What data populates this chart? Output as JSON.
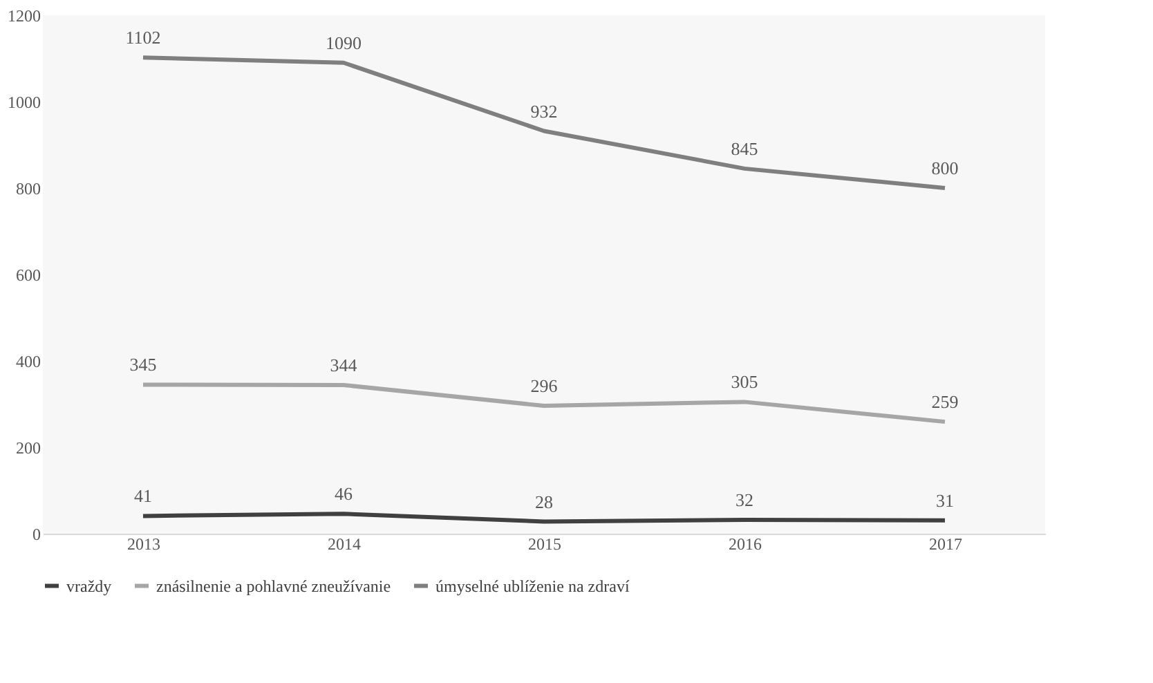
{
  "chart_data": {
    "type": "line",
    "categories": [
      "2013",
      "2014",
      "2015",
      "2016",
      "2017"
    ],
    "series": [
      {
        "name": "vraždy",
        "color": "#404040",
        "values": [
          41,
          46,
          28,
          32,
          31
        ]
      },
      {
        "name": "znásilnenie a pohlavné zneužívanie",
        "color": "#a6a6a6",
        "values": [
          345,
          344,
          296,
          305,
          259
        ]
      },
      {
        "name": "úmyselné ublíženie na zdraví",
        "color": "#7f7f7f",
        "values": [
          1102,
          1090,
          932,
          845,
          800
        ]
      }
    ],
    "ylim": [
      0,
      1200
    ],
    "yticks": [
      0,
      200,
      400,
      600,
      800,
      1000,
      1200
    ],
    "data_labels": true,
    "grid": false,
    "legend": "bottom",
    "marker": "none",
    "line_style": "solid"
  }
}
